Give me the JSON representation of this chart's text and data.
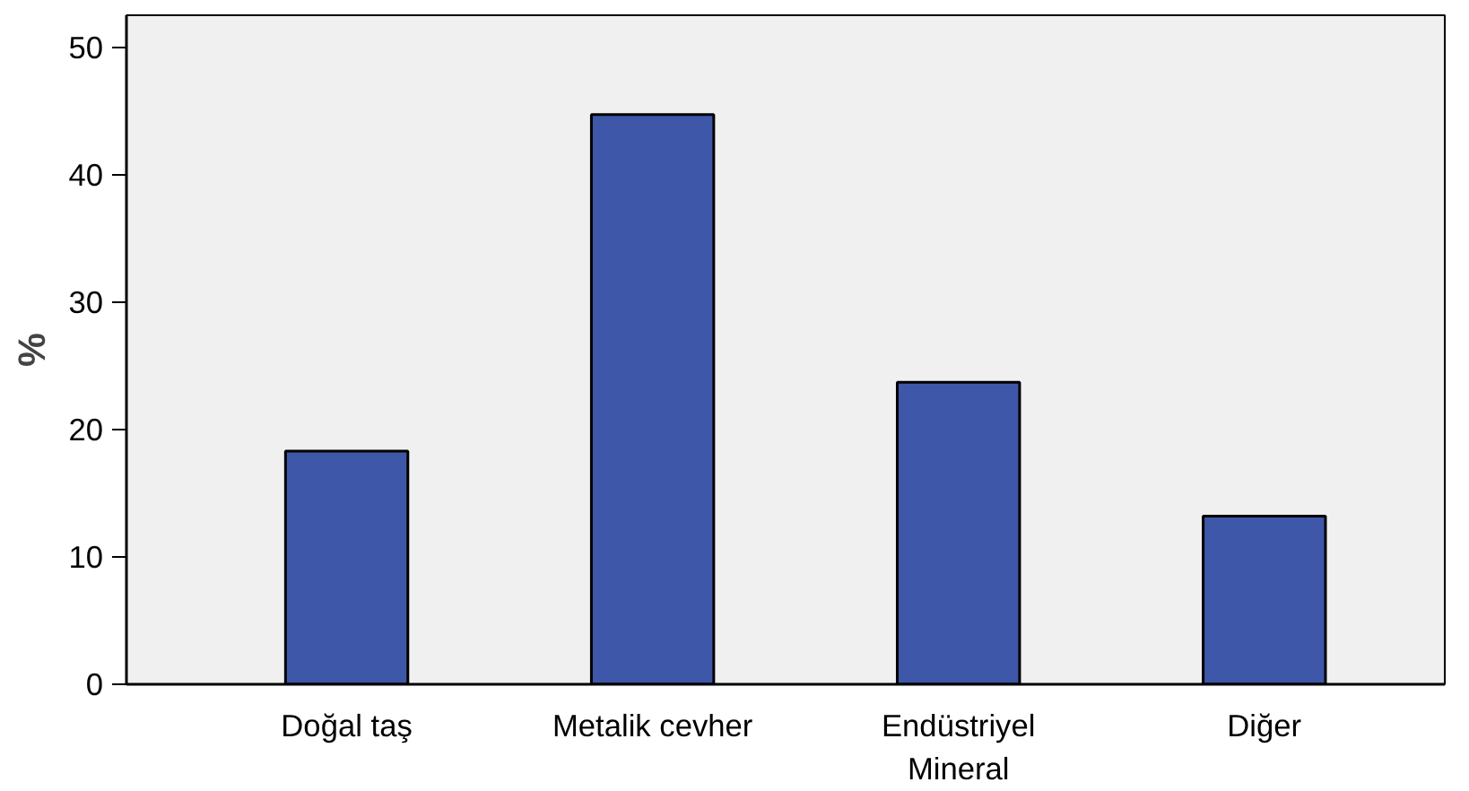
{
  "chart_data": {
    "type": "bar",
    "ylabel": "%",
    "categories": [
      "Doğal taş",
      "Metalik cevher",
      "Endüstriyel Mineral",
      "Diğer"
    ],
    "values": [
      18.3,
      44.7,
      23.7,
      13.2
    ],
    "color": "#3f57a8",
    "ylim": [
      0,
      52.5
    ],
    "yticks": [
      0,
      10,
      20,
      30,
      40,
      50
    ],
    "grid": false
  }
}
